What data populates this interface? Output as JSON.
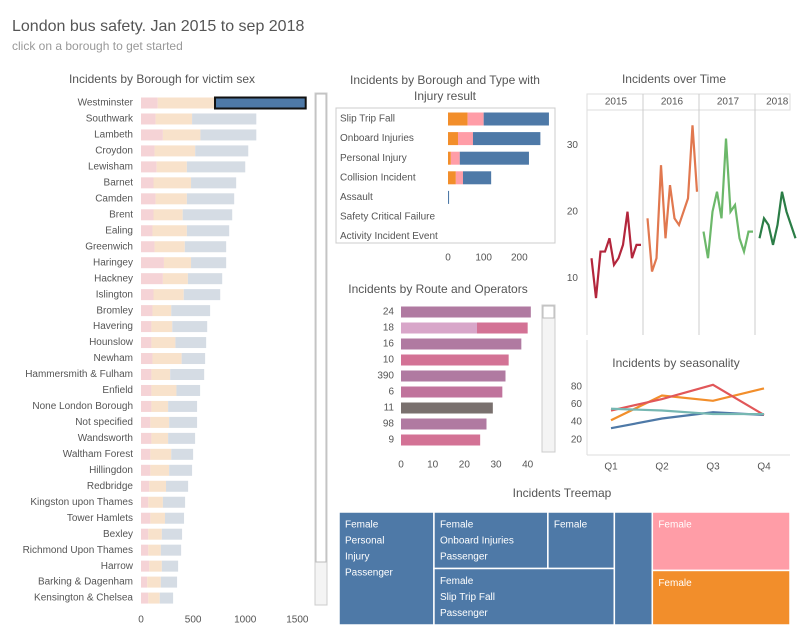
{
  "header": {
    "title": "London bus safety. Jan 2015 to sep 2018",
    "subtitle": "click on a borough to get started"
  },
  "chart_data": [
    {
      "type": "bar",
      "title": "Incidents by Borough for victim sex",
      "categories": [
        "Westminster",
        "Southwark",
        "Lambeth",
        "Croydon",
        "Lewisham",
        "Barnet",
        "Camden",
        "Brent",
        "Ealing",
        "Greenwich",
        "Haringey",
        "Hackney",
        "Islington",
        "Bromley",
        "Havering",
        "Hounslow",
        "Newham",
        "Hammersmith & Fulham",
        "Enfield",
        "None London Borough",
        "Not specified",
        "Wandsworth",
        "Waltham Forest",
        "Hillingdon",
        "Redbridge",
        "Kingston upon Thames",
        "Tower Hamlets",
        "Bexley",
        "Richmond Upon Thames",
        "Harrow",
        "Barking & Dagenham",
        "Kensington & Chelsea"
      ],
      "series": [
        {
          "color": "#f5d3d6",
          "values": [
            160,
            140,
            210,
            130,
            150,
            120,
            140,
            120,
            110,
            130,
            220,
            210,
            120,
            110,
            100,
            100,
            110,
            100,
            100,
            100,
            90,
            100,
            90,
            90,
            80,
            70,
            90,
            70,
            70,
            80,
            60,
            70
          ]
        },
        {
          "color": "#f8e2cb",
          "values": [
            550,
            350,
            360,
            390,
            290,
            360,
            300,
            280,
            330,
            290,
            260,
            240,
            290,
            180,
            200,
            230,
            280,
            180,
            240,
            160,
            180,
            160,
            200,
            180,
            160,
            140,
            140,
            130,
            120,
            120,
            130,
            110
          ]
        },
        {
          "color": "#d5dce4",
          "highlight_color": "#4e79a7",
          "values": [
            870,
            616,
            536,
            509,
            560,
            433,
            454,
            475,
            406,
            397,
            337,
            329,
            350,
            373,
            335,
            295,
            225,
            326,
            227,
            278,
            268,
            259,
            210,
            220,
            212,
            213,
            183,
            194,
            195,
            156,
            156,
            128
          ]
        }
      ],
      "highlight": "Westminster",
      "xlim": [
        0,
        1650
      ],
      "xticks": [
        0,
        500,
        1000,
        1500
      ]
    },
    {
      "type": "bar",
      "title": "Incidents by Borough and Type with Injury result",
      "categories": [
        "Slip Trip Fall",
        "Onboard Injuries",
        "Personal Injury",
        "Collision Incident",
        "Assault",
        "Safety Critical Failure",
        "Activity Incident Event"
      ],
      "series": [
        {
          "color": "#f28e2b",
          "values": [
            55,
            28,
            8,
            22,
            0,
            0,
            0
          ]
        },
        {
          "color": "#ff9da7",
          "values": [
            45,
            42,
            25,
            20,
            0,
            0,
            0
          ]
        },
        {
          "color": "#4e79a7",
          "values": [
            183,
            189,
            194,
            79,
            3,
            0,
            0
          ]
        }
      ],
      "xlim": [
        0,
        300
      ],
      "xticks": [
        0,
        100,
        200
      ]
    },
    {
      "type": "line",
      "title": "Incidents over Time",
      "series": [
        {
          "name": "2015",
          "color": "#b3263c",
          "values": [
            13,
            7,
            14,
            14,
            16,
            12,
            13,
            15,
            20,
            13,
            15,
            15
          ]
        },
        {
          "name": "2016",
          "color": "#e1784f",
          "values": [
            19,
            11,
            13,
            27,
            16,
            24,
            19,
            18,
            20,
            22,
            33,
            23
          ]
        },
        {
          "name": "2017",
          "color": "#6cb86a",
          "values": [
            17,
            13,
            20,
            23,
            19,
            31,
            20,
            21,
            16,
            14,
            17,
            17
          ]
        },
        {
          "name": "2018",
          "color": "#2b7d46",
          "values": [
            16,
            19,
            18,
            15,
            18,
            23,
            20,
            18,
            16
          ]
        }
      ],
      "ylim": [
        4,
        35
      ],
      "yticks": [
        10,
        20,
        30
      ]
    },
    {
      "type": "bar",
      "title": "Incidents by Route and Operators",
      "categories": [
        "24",
        "18",
        "16",
        "10",
        "390",
        "6",
        "11",
        "98",
        "9"
      ],
      "series": [
        {
          "colors": [
            "#b07aa1",
            "#d8a6c9",
            "#b07aa1",
            "#d37295",
            "#b07aa1",
            "#c0739c",
            "#79706e",
            "#b07aa1",
            "#d37295"
          ],
          "values": [
            41,
            24,
            38,
            34,
            33,
            32,
            29,
            27,
            25
          ]
        },
        {
          "color": "#d37295",
          "values": [
            null,
            16,
            null,
            null,
            null,
            null,
            null,
            null,
            null
          ]
        }
      ],
      "xlim": [
        0,
        42
      ],
      "xticks": [
        0,
        10,
        20,
        30,
        40
      ]
    },
    {
      "type": "line",
      "title": "Incidents by seasonality",
      "categories": [
        "Q1",
        "Q2",
        "Q3",
        "Q4"
      ],
      "series": [
        {
          "color": "#4e79a7",
          "values": [
            33,
            44,
            51,
            48
          ]
        },
        {
          "color": "#f28e2b",
          "values": [
            42,
            70,
            64,
            78
          ]
        },
        {
          "color": "#e15759",
          "values": [
            53,
            66,
            82,
            48
          ]
        },
        {
          "color": "#76b7b2",
          "values": [
            55,
            53,
            49,
            49
          ]
        }
      ],
      "ylim": [
        5,
        92
      ],
      "yticks": [
        20,
        40,
        60,
        80
      ]
    },
    {
      "type": "treemap",
      "title": "Incidents Treemap",
      "nodes": [
        {
          "label": [
            "Female",
            "Personal",
            "Injury",
            "Passenger"
          ],
          "value": 200,
          "color": "#4e79a7"
        },
        {
          "label": [
            "Female",
            "Onboard Injuries",
            "Passenger"
          ],
          "value": 120,
          "color": "#4e79a7"
        },
        {
          "label": [
            "Female"
          ],
          "value": 70,
          "color": "#4e79a7"
        },
        {
          "label": [
            "Female",
            "Slip Trip Fall",
            "Passenger"
          ],
          "value": 190,
          "color": "#4e79a7"
        },
        {
          "label": null,
          "value": 80,
          "color": "#4e79a7"
        },
        {
          "label": [
            "Female"
          ],
          "value": 150,
          "color": "#ff9da7"
        },
        {
          "label": [
            "Female"
          ],
          "value": 140,
          "color": "#f28e2b"
        }
      ]
    }
  ]
}
